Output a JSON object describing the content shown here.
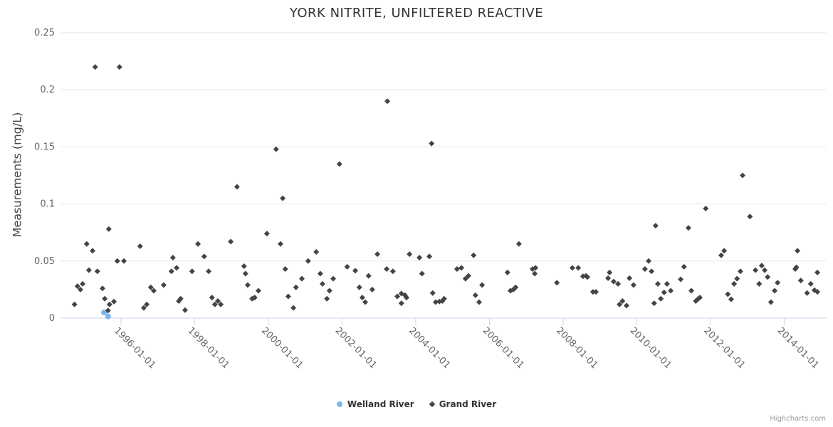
{
  "title": "YORK NITRITE, UNFILTERED REACTIVE",
  "watermark": "Highcharts.com",
  "colors": {
    "welland": "#7cb5ec",
    "grand": "#434348",
    "gridline": "#e6e6e6",
    "axis_line": "#ccd6eb",
    "tick_label": "#666666",
    "title_text": "#333333"
  },
  "chart_data": {
    "type": "scatter",
    "title": "YORK NITRITE, UNFILTERED REACTIVE",
    "xlabel": "",
    "ylabel": "Measurements (mg/L)",
    "ylim": [
      0,
      0.25
    ],
    "xlim_years": [
      1994.36,
      2015.15
    ],
    "grid": "horizontal-only",
    "legend_position": "bottom-center",
    "y_ticks": [
      {
        "value": 0,
        "label": "0"
      },
      {
        "value": 0.05,
        "label": "0.05"
      },
      {
        "value": 0.1,
        "label": "0.1"
      },
      {
        "value": 0.15,
        "label": "0.15"
      },
      {
        "value": 0.2,
        "label": "0.2"
      },
      {
        "value": 0.25,
        "label": "0.25"
      }
    ],
    "x_ticks": [
      {
        "year": 1996,
        "label": "1996-01-01"
      },
      {
        "year": 1998,
        "label": "1998-01-01"
      },
      {
        "year": 2000,
        "label": "2000-01-01"
      },
      {
        "year": 2002,
        "label": "2002-01-01"
      },
      {
        "year": 2004,
        "label": "2004-01-01"
      },
      {
        "year": 2006,
        "label": "2006-01-01"
      },
      {
        "year": 2008,
        "label": "2008-01-01"
      },
      {
        "year": 2010,
        "label": "2010-01-01"
      },
      {
        "year": 2012,
        "label": "2012-01-01"
      },
      {
        "year": 2014,
        "label": "2014-01-01"
      }
    ],
    "series": [
      {
        "name": "Welland River",
        "marker": "circle",
        "color": "#7cb5ec",
        "points": [
          [
            1995.54,
            0.005
          ],
          [
            1995.65,
            0.0015
          ]
        ]
      },
      {
        "name": "Grand River",
        "marker": "diamond",
        "color": "#434348",
        "points": [
          [
            1995.3,
            0.22
          ],
          [
            1995.96,
            0.22
          ],
          [
            1995.67,
            0.078
          ],
          [
            1995.07,
            0.065
          ],
          [
            1996.52,
            0.063
          ],
          [
            1995.23,
            0.059
          ],
          [
            1997.41,
            0.053
          ],
          [
            1995.9,
            0.05
          ],
          [
            1996.08,
            0.05
          ],
          [
            1995.13,
            0.042
          ],
          [
            1995.36,
            0.041
          ],
          [
            1997.37,
            0.041
          ],
          [
            1997.51,
            0.044
          ],
          [
            1994.96,
            0.03
          ],
          [
            1994.82,
            0.028
          ],
          [
            1994.9,
            0.025
          ],
          [
            1995.5,
            0.026
          ],
          [
            1996.81,
            0.027
          ],
          [
            1997.16,
            0.029
          ],
          [
            1996.89,
            0.024
          ],
          [
            1995.56,
            0.017
          ],
          [
            1995.81,
            0.0145
          ],
          [
            1995.69,
            0.012
          ],
          [
            1994.74,
            0.012
          ],
          [
            1996.7,
            0.012
          ],
          [
            1996.62,
            0.009
          ],
          [
            1997.62,
            0.017
          ],
          [
            1997.57,
            0.015
          ],
          [
            1997.74,
            0.007
          ],
          [
            1995.65,
            0.0066
          ],
          [
            2000.21,
            0.148
          ],
          [
            1999.15,
            0.115
          ],
          [
            2000.39,
            0.105
          ],
          [
            1999.96,
            0.074
          ],
          [
            1998.09,
            0.065
          ],
          [
            1998.98,
            0.067
          ],
          [
            2000.33,
            0.065
          ],
          [
            1998.26,
            0.054
          ],
          [
            2001.3,
            0.058
          ],
          [
            2001.08,
            0.05
          ],
          [
            1997.93,
            0.041
          ],
          [
            1998.38,
            0.041
          ],
          [
            1999.34,
            0.0455
          ],
          [
            1999.38,
            0.039
          ],
          [
            2000.46,
            0.043
          ],
          [
            1999.44,
            0.029
          ],
          [
            1999.73,
            0.024
          ],
          [
            1999.56,
            0.017
          ],
          [
            1999.63,
            0.018
          ],
          [
            1998.47,
            0.018
          ],
          [
            1998.63,
            0.015
          ],
          [
            1998.55,
            0.012
          ],
          [
            1998.71,
            0.012
          ],
          [
            2000.91,
            0.0345
          ],
          [
            2000.75,
            0.027
          ],
          [
            2000.54,
            0.019
          ],
          [
            2000.68,
            0.009
          ],
          [
            2003.23,
            0.19
          ],
          [
            2004.43,
            0.153
          ],
          [
            2001.93,
            0.135
          ],
          [
            2002.96,
            0.056
          ],
          [
            2003.83,
            0.056
          ],
          [
            2004.1,
            0.053
          ],
          [
            2004.37,
            0.054
          ],
          [
            2002.14,
            0.045
          ],
          [
            2002.36,
            0.0415
          ],
          [
            2001.41,
            0.039
          ],
          [
            2001.47,
            0.03
          ],
          [
            2001.76,
            0.0345
          ],
          [
            2001.66,
            0.024
          ],
          [
            2001.59,
            0.017
          ],
          [
            2003.21,
            0.043
          ],
          [
            2003.38,
            0.041
          ],
          [
            2002.72,
            0.037
          ],
          [
            2002.47,
            0.027
          ],
          [
            2002.82,
            0.025
          ],
          [
            2002.55,
            0.018
          ],
          [
            2002.63,
            0.014
          ],
          [
            2003.5,
            0.019
          ],
          [
            2003.61,
            0.0215
          ],
          [
            2003.71,
            0.02
          ],
          [
            2003.75,
            0.018
          ],
          [
            2003.61,
            0.013
          ],
          [
            2004.17,
            0.039
          ],
          [
            2004.46,
            0.022
          ],
          [
            2004.54,
            0.014
          ],
          [
            2004.64,
            0.0145
          ],
          [
            2004.72,
            0.015
          ],
          [
            2004.77,
            0.017
          ],
          [
            2006.8,
            0.065
          ],
          [
            2005.57,
            0.055
          ],
          [
            2005.12,
            0.043
          ],
          [
            2005.24,
            0.044
          ],
          [
            2005.35,
            0.0345
          ],
          [
            2005.43,
            0.037
          ],
          [
            2005.8,
            0.029
          ],
          [
            2005.62,
            0.02
          ],
          [
            2005.72,
            0.014
          ],
          [
            2006.49,
            0.04
          ],
          [
            2006.57,
            0.024
          ],
          [
            2006.65,
            0.025
          ],
          [
            2006.71,
            0.027
          ],
          [
            2007.17,
            0.043
          ],
          [
            2007.25,
            0.044
          ],
          [
            2007.23,
            0.039
          ],
          [
            2007.83,
            0.031
          ],
          [
            2008.25,
            0.044
          ],
          [
            2010.51,
            0.081
          ],
          [
            2011.4,
            0.079
          ],
          [
            2010.32,
            0.05
          ],
          [
            2008.41,
            0.044
          ],
          [
            2010.22,
            0.043
          ],
          [
            2010.4,
            0.041
          ],
          [
            2008.54,
            0.0366
          ],
          [
            2008.62,
            0.037
          ],
          [
            2008.66,
            0.036
          ],
          [
            2009.26,
            0.04
          ],
          [
            2009.22,
            0.035
          ],
          [
            2009.37,
            0.032
          ],
          [
            2009.49,
            0.03
          ],
          [
            2008.81,
            0.023
          ],
          [
            2008.89,
            0.023
          ],
          [
            2009.8,
            0.035
          ],
          [
            2009.91,
            0.029
          ],
          [
            2009.53,
            0.012
          ],
          [
            2009.61,
            0.015
          ],
          [
            2009.72,
            0.011
          ],
          [
            2010.57,
            0.03
          ],
          [
            2010.82,
            0.03
          ],
          [
            2010.74,
            0.0225
          ],
          [
            2010.92,
            0.024
          ],
          [
            2010.65,
            0.017
          ],
          [
            2010.47,
            0.013
          ],
          [
            2011.19,
            0.034
          ],
          [
            2011.28,
            0.045
          ],
          [
            2011.48,
            0.024
          ],
          [
            2011.6,
            0.015
          ],
          [
            2011.67,
            0.017
          ],
          [
            2011.71,
            0.018
          ],
          [
            2012.87,
            0.125
          ],
          [
            2011.87,
            0.096
          ],
          [
            2013.07,
            0.089
          ],
          [
            2012.37,
            0.059
          ],
          [
            2012.29,
            0.055
          ],
          [
            2014.36,
            0.059
          ],
          [
            2013.39,
            0.046
          ],
          [
            2013.22,
            0.042
          ],
          [
            2013.47,
            0.042
          ],
          [
            2012.81,
            0.041
          ],
          [
            2013.55,
            0.036
          ],
          [
            2012.72,
            0.0345
          ],
          [
            2012.64,
            0.03
          ],
          [
            2013.32,
            0.03
          ],
          [
            2012.47,
            0.021
          ],
          [
            2012.56,
            0.0165
          ],
          [
            2013.82,
            0.031
          ],
          [
            2013.74,
            0.024
          ],
          [
            2013.64,
            0.014
          ],
          [
            2014.3,
            0.043
          ],
          [
            2014.33,
            0.0445
          ],
          [
            2014.45,
            0.033
          ],
          [
            2014.72,
            0.03
          ],
          [
            2014.82,
            0.0245
          ],
          [
            2014.9,
            0.023
          ],
          [
            2014.62,
            0.022
          ],
          [
            2014.9,
            0.04
          ]
        ]
      }
    ]
  }
}
